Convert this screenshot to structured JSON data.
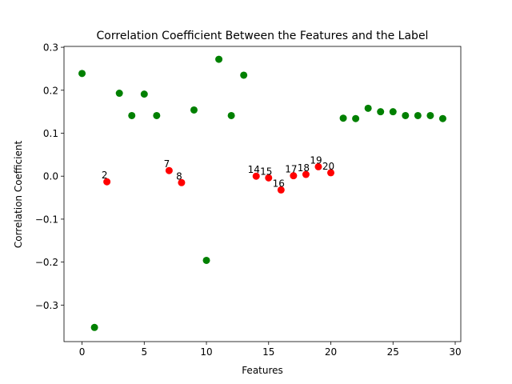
{
  "chart_data": {
    "type": "scatter",
    "title": "Correlation Coefficient Between the Features and the Label",
    "xlabel": "Features",
    "ylabel": "Correlation Coefficient",
    "xlim": [
      -1.45,
      30.45
    ],
    "ylim": [
      -0.385,
      0.302
    ],
    "xticks": [
      0,
      5,
      10,
      15,
      20,
      25,
      30
    ],
    "yticks": [
      -0.3,
      -0.2,
      -0.1,
      0.0,
      0.1,
      0.2,
      0.3
    ],
    "ytick_labels": [
      "−0.3",
      "−0.2",
      "−0.1",
      "0.0",
      "0.1",
      "0.2",
      "0.3"
    ],
    "grid": false,
    "colors": {
      "positive": "#008000",
      "negative": "#ff0000"
    },
    "points": [
      {
        "x": 0,
        "y": 0.239,
        "color": "green",
        "label": ""
      },
      {
        "x": 1,
        "y": -0.352,
        "color": "green",
        "label": ""
      },
      {
        "x": 2,
        "y": -0.013,
        "color": "red",
        "label": "2"
      },
      {
        "x": 3,
        "y": 0.193,
        "color": "green",
        "label": ""
      },
      {
        "x": 4,
        "y": 0.141,
        "color": "green",
        "label": ""
      },
      {
        "x": 5,
        "y": 0.191,
        "color": "green",
        "label": ""
      },
      {
        "x": 6,
        "y": 0.141,
        "color": "green",
        "label": ""
      },
      {
        "x": 7,
        "y": 0.013,
        "color": "red",
        "label": "7"
      },
      {
        "x": 8,
        "y": -0.015,
        "color": "red",
        "label": "8"
      },
      {
        "x": 9,
        "y": 0.154,
        "color": "green",
        "label": ""
      },
      {
        "x": 10,
        "y": -0.196,
        "color": "green",
        "label": ""
      },
      {
        "x": 11,
        "y": 0.272,
        "color": "green",
        "label": ""
      },
      {
        "x": 12,
        "y": 0.141,
        "color": "green",
        "label": ""
      },
      {
        "x": 13,
        "y": 0.235,
        "color": "green",
        "label": ""
      },
      {
        "x": 14,
        "y": 0.0,
        "color": "red",
        "label": "14"
      },
      {
        "x": 15,
        "y": -0.004,
        "color": "red",
        "label": "15"
      },
      {
        "x": 16,
        "y": -0.032,
        "color": "red",
        "label": "16"
      },
      {
        "x": 17,
        "y": 0.001,
        "color": "red",
        "label": "17"
      },
      {
        "x": 18,
        "y": 0.004,
        "color": "red",
        "label": "18"
      },
      {
        "x": 19,
        "y": 0.022,
        "color": "red",
        "label": "19"
      },
      {
        "x": 20,
        "y": 0.008,
        "color": "red",
        "label": "20"
      },
      {
        "x": 21,
        "y": 0.135,
        "color": "green",
        "label": ""
      },
      {
        "x": 22,
        "y": 0.134,
        "color": "green",
        "label": ""
      },
      {
        "x": 23,
        "y": 0.158,
        "color": "green",
        "label": ""
      },
      {
        "x": 24,
        "y": 0.15,
        "color": "green",
        "label": ""
      },
      {
        "x": 25,
        "y": 0.15,
        "color": "green",
        "label": ""
      },
      {
        "x": 26,
        "y": 0.141,
        "color": "green",
        "label": ""
      },
      {
        "x": 27,
        "y": 0.141,
        "color": "green",
        "label": ""
      },
      {
        "x": 28,
        "y": 0.141,
        "color": "green",
        "label": ""
      },
      {
        "x": 29,
        "y": 0.134,
        "color": "green",
        "label": ""
      }
    ]
  }
}
